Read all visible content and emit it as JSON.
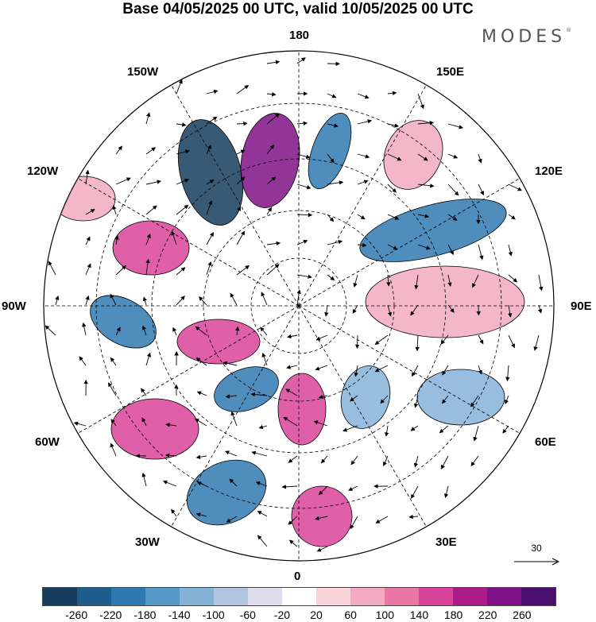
{
  "title": "Base 04/05/2025 00 UTC, valid 10/05/2025 00 UTC",
  "brand": "MODES",
  "brand_mark": "®",
  "longitude_labels": {
    "top": "180",
    "bottom": "0",
    "left": "90W",
    "right": "90E",
    "upper_left_1": "150W",
    "upper_left_2": "120W",
    "upper_right_1": "150E",
    "upper_right_2": "120E",
    "lower_left_1": "60W",
    "lower_left_2": "30W",
    "lower_right_1": "60E",
    "lower_right_2": "30E"
  },
  "vector_scale_label": "30",
  "colorbar": {
    "ticks": [
      "-260",
      "-220",
      "-180",
      "-140",
      "-100",
      "-60",
      "-20",
      "20",
      "60",
      "100",
      "140",
      "180",
      "220",
      "260"
    ],
    "colors": [
      "#163d5d",
      "#1e5d8c",
      "#2f79b0",
      "#5499c7",
      "#85b3d8",
      "#b3c6e1",
      "#dcdcec",
      "#ffffff",
      "#f7d3d8",
      "#f1aabf",
      "#e877a6",
      "#d9449a",
      "#ad1b8a",
      "#7e1286",
      "#4a0e6e"
    ]
  },
  "anomaly_colors": {
    "neg_strong": "#163d5d",
    "neg_mid": "#2f79b0",
    "neg_weak": "#85b3d8",
    "pos_weak": "#f1aabf",
    "pos_mid": "#d9449a",
    "pos_strong": "#7e1286"
  }
}
